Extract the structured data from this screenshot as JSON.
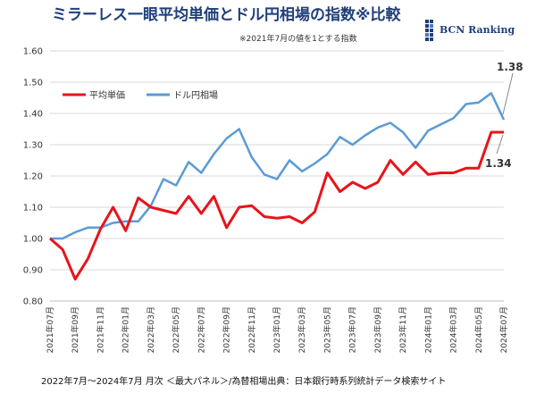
{
  "chart_data": {
    "type": "line",
    "title": "ミラーレス一眼平均単価とドル円相場の指数※比較",
    "subtitle": "※2021年7月の値を1とする指数",
    "brand": "BCN Ranking",
    "xlabel": "",
    "ylabel": "",
    "ylim": [
      0.8,
      1.6
    ],
    "yticks": [
      "0.80",
      "0.90",
      "1.00",
      "1.10",
      "1.20",
      "1.30",
      "1.40",
      "1.50",
      "1.60"
    ],
    "grid": true,
    "legend_position": "top-left",
    "categories": [
      "2021年07月",
      "2021年08月",
      "2021年09月",
      "2021年10月",
      "2021年11月",
      "2021年12月",
      "2022年01月",
      "2022年02月",
      "2022年03月",
      "2022年04月",
      "2022年05月",
      "2022年06月",
      "2022年07月",
      "2022年08月",
      "2022年09月",
      "2022年10月",
      "2022年11月",
      "2022年12月",
      "2023年01月",
      "2023年02月",
      "2023年03月",
      "2023年04月",
      "2023年05月",
      "2023年06月",
      "2023年07月",
      "2023年08月",
      "2023年09月",
      "2023年10月",
      "2023年11月",
      "2023年12月",
      "2024年01月",
      "2024年02月",
      "2024年03月",
      "2024年04月",
      "2024年05月",
      "2024年06月",
      "2024年07月"
    ],
    "tick_labels": [
      "2021年07月",
      "2021年09月",
      "2021年11月",
      "2022年01月",
      "2022年03月",
      "2022年05月",
      "2022年07月",
      "2022年09月",
      "2022年11月",
      "2023年01月",
      "2023年03月",
      "2023年05月",
      "2023年07月",
      "2023年09月",
      "2023年11月",
      "2024年01月",
      "2024年03月",
      "2024年05月",
      "2024年07月"
    ],
    "series": [
      {
        "name": "平均単価",
        "color": "#e8141b",
        "values": [
          1.0,
          0.965,
          0.87,
          0.935,
          1.03,
          1.1,
          1.025,
          1.13,
          1.1,
          1.09,
          1.08,
          1.135,
          1.08,
          1.135,
          1.035,
          1.1,
          1.105,
          1.07,
          1.065,
          1.07,
          1.05,
          1.085,
          1.21,
          1.15,
          1.18,
          1.16,
          1.18,
          1.25,
          1.205,
          1.245,
          1.205,
          1.21,
          1.21,
          1.225,
          1.225,
          1.34,
          1.34
        ]
      },
      {
        "name": "ドル円相場",
        "color": "#5b9bd5",
        "values": [
          1.0,
          1.0,
          1.02,
          1.035,
          1.035,
          1.05,
          1.055,
          1.055,
          1.105,
          1.19,
          1.17,
          1.245,
          1.21,
          1.27,
          1.32,
          1.35,
          1.26,
          1.205,
          1.19,
          1.25,
          1.215,
          1.24,
          1.27,
          1.325,
          1.3,
          1.33,
          1.355,
          1.37,
          1.34,
          1.29,
          1.345,
          1.365,
          1.385,
          1.43,
          1.435,
          1.465,
          1.38
        ]
      }
    ],
    "annotations": [
      {
        "text": "1.38",
        "series": "ドル円相場"
      },
      {
        "text": "1.34",
        "series": "平均単価"
      }
    ],
    "footer": "2022年7月～2024年7月 月次 ＜最大パネル＞/為替相場出典：日本銀行時系列統計データ検索サイト"
  }
}
